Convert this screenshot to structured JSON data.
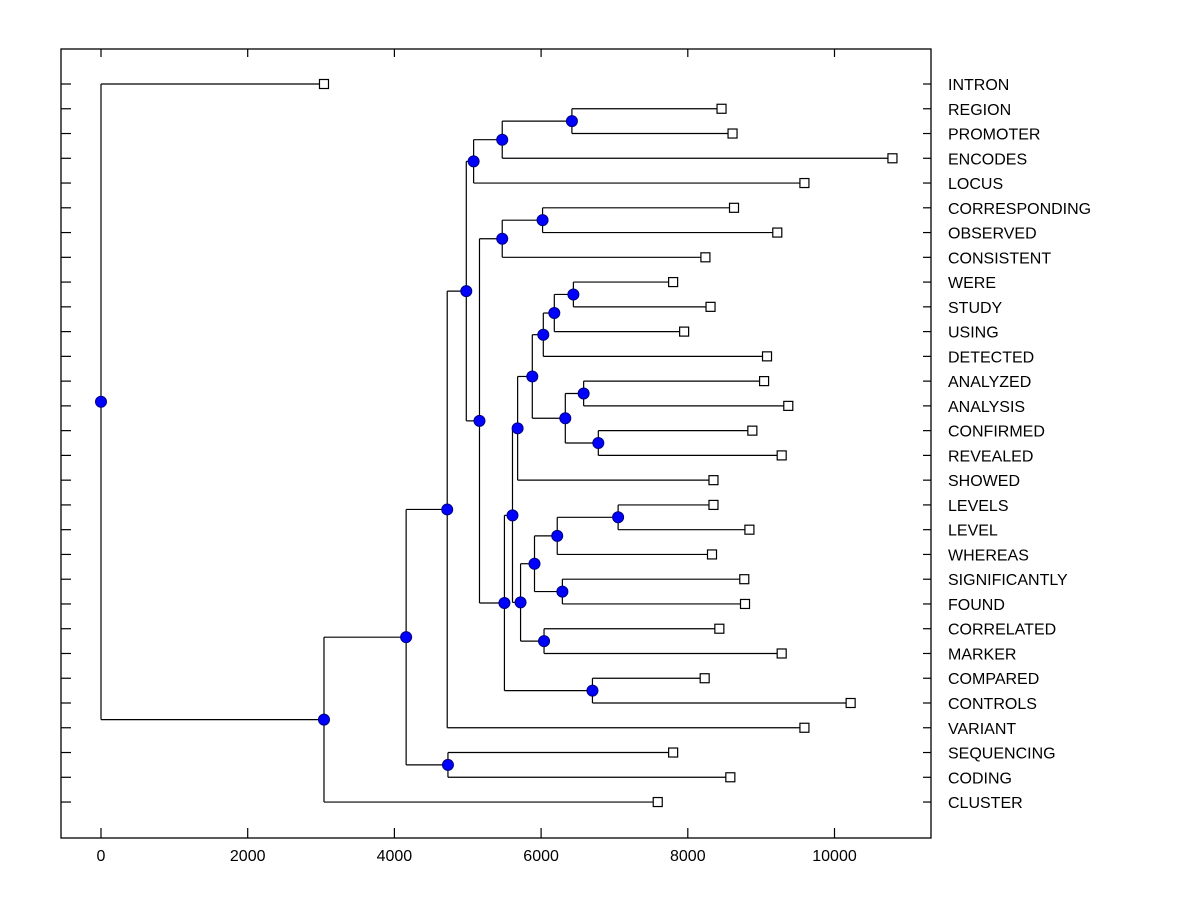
{
  "chart_data": {
    "type": "dendrogram",
    "title": "",
    "xlabel": "",
    "ylabel": "",
    "xlim": [
      -550,
      11300
    ],
    "x_ticks": [
      0,
      2000,
      4000,
      6000,
      8000,
      10000
    ],
    "x_tick_labels": [
      "0",
      "2000",
      "4000",
      "6000",
      "8000",
      "10000"
    ],
    "grid": false,
    "legend": "none",
    "colors": {
      "node_fill": "#0000ff",
      "node_stroke": "#000080",
      "leaf_fill": "#ffffff",
      "line": "#000000"
    },
    "leaves": [
      {
        "label": "INTRON",
        "value": 3040
      },
      {
        "label": "REGION",
        "value": 8460
      },
      {
        "label": "PROMOTER",
        "value": 8610
      },
      {
        "label": "ENCODES",
        "value": 10790
      },
      {
        "label": "LOCUS",
        "value": 9590
      },
      {
        "label": "CORRESPONDING",
        "value": 8630
      },
      {
        "label": "OBSERVED",
        "value": 9220
      },
      {
        "label": "CONSISTENT",
        "value": 8240
      },
      {
        "label": "WERE",
        "value": 7800
      },
      {
        "label": "STUDY",
        "value": 8310
      },
      {
        "label": "USING",
        "value": 7950
      },
      {
        "label": "DETECTED",
        "value": 9080
      },
      {
        "label": "ANALYZED",
        "value": 9040
      },
      {
        "label": "ANALYSIS",
        "value": 9370
      },
      {
        "label": "CONFIRMED",
        "value": 8880
      },
      {
        "label": "REVEALED",
        "value": 9280
      },
      {
        "label": "SHOWED",
        "value": 8350
      },
      {
        "label": "LEVELS",
        "value": 8350
      },
      {
        "label": "LEVEL",
        "value": 8840
      },
      {
        "label": "WHEREAS",
        "value": 8330
      },
      {
        "label": "SIGNIFICANTLY",
        "value": 8770
      },
      {
        "label": "FOUND",
        "value": 8780
      },
      {
        "label": "CORRELATED",
        "value": 8430
      },
      {
        "label": "MARKER",
        "value": 9280
      },
      {
        "label": "COMPARED",
        "value": 8230
      },
      {
        "label": "CONTROLS",
        "value": 10220
      },
      {
        "label": "VARIANT",
        "value": 9590
      },
      {
        "label": "SEQUENCING",
        "value": 7800
      },
      {
        "label": "CODING",
        "value": 8580
      },
      {
        "label": "CLUSTER",
        "value": 7590
      }
    ],
    "nodes": [
      {
        "id": "n_reg_pro",
        "value": 6420,
        "children": [
          "REGION",
          "PROMOTER"
        ]
      },
      {
        "id": "n_enc",
        "value": 5470,
        "children": [
          "n_reg_pro",
          "ENCODES"
        ]
      },
      {
        "id": "n_locus",
        "value": 5080,
        "children": [
          "n_enc",
          "LOCUS"
        ]
      },
      {
        "id": "n_corr_obs",
        "value": 6020,
        "children": [
          "CORRESPONDING",
          "OBSERVED"
        ]
      },
      {
        "id": "n_cons",
        "value": 5470,
        "children": [
          "n_corr_obs",
          "CONSISTENT"
        ]
      },
      {
        "id": "n_were_study",
        "value": 6440,
        "children": [
          "WERE",
          "STUDY"
        ]
      },
      {
        "id": "n_using",
        "value": 6180,
        "children": [
          "n_were_study",
          "USING"
        ]
      },
      {
        "id": "n_detected",
        "value": 6030,
        "children": [
          "n_using",
          "DETECTED"
        ]
      },
      {
        "id": "n_anz",
        "value": 6580,
        "children": [
          "ANALYZED",
          "ANALYSIS"
        ]
      },
      {
        "id": "n_conf",
        "value": 6780,
        "children": [
          "CONFIRMED",
          "REVEALED"
        ]
      },
      {
        "id": "n_anz_conf",
        "value": 6330,
        "children": [
          "n_anz",
          "n_conf"
        ]
      },
      {
        "id": "n_mid1",
        "value": 5880,
        "children": [
          "n_detected",
          "n_anz_conf"
        ]
      },
      {
        "id": "n_showed",
        "value": 5680,
        "children": [
          "n_mid1",
          "SHOWED"
        ]
      },
      {
        "id": "n_levels",
        "value": 7050,
        "children": [
          "LEVELS",
          "LEVEL"
        ]
      },
      {
        "id": "n_whereas",
        "value": 6220,
        "children": [
          "n_levels",
          "WHEREAS"
        ]
      },
      {
        "id": "n_sig",
        "value": 6290,
        "children": [
          "SIGNIFICANTLY",
          "FOUND"
        ]
      },
      {
        "id": "n_lev_sig",
        "value": 5910,
        "children": [
          "n_whereas",
          "n_sig"
        ]
      },
      {
        "id": "n_corr_mark",
        "value": 6040,
        "children": [
          "CORRELATED",
          "MARKER"
        ]
      },
      {
        "id": "n_mid2",
        "value": 5720,
        "children": [
          "n_lev_sig",
          "n_corr_mark"
        ]
      },
      {
        "id": "n_mid3",
        "value": 5610,
        "children": [
          "n_showed",
          "n_mid2"
        ]
      },
      {
        "id": "n_comp",
        "value": 6700,
        "children": [
          "COMPARED",
          "CONTROLS"
        ]
      },
      {
        "id": "n_mid4",
        "value": 5500,
        "children": [
          "n_mid3",
          "n_comp"
        ]
      },
      {
        "id": "n_mid5",
        "value": 5160,
        "children": [
          "n_cons",
          "n_mid4"
        ]
      },
      {
        "id": "n_mid6",
        "value": 4980,
        "children": [
          "n_locus",
          "n_mid5"
        ]
      },
      {
        "id": "n_variant",
        "value": 4720,
        "children": [
          "n_mid6",
          "VARIANT"
        ]
      },
      {
        "id": "n_seq",
        "value": 4730,
        "children": [
          "SEQUENCING",
          "CODING"
        ]
      },
      {
        "id": "n_mid7",
        "value": 4160,
        "children": [
          "n_variant",
          "n_seq"
        ]
      },
      {
        "id": "n_cluster",
        "value": 3040,
        "children": [
          "n_mid7",
          "CLUSTER"
        ]
      },
      {
        "id": "root",
        "value": 0,
        "children": [
          "INTRON",
          "n_cluster"
        ]
      }
    ]
  }
}
